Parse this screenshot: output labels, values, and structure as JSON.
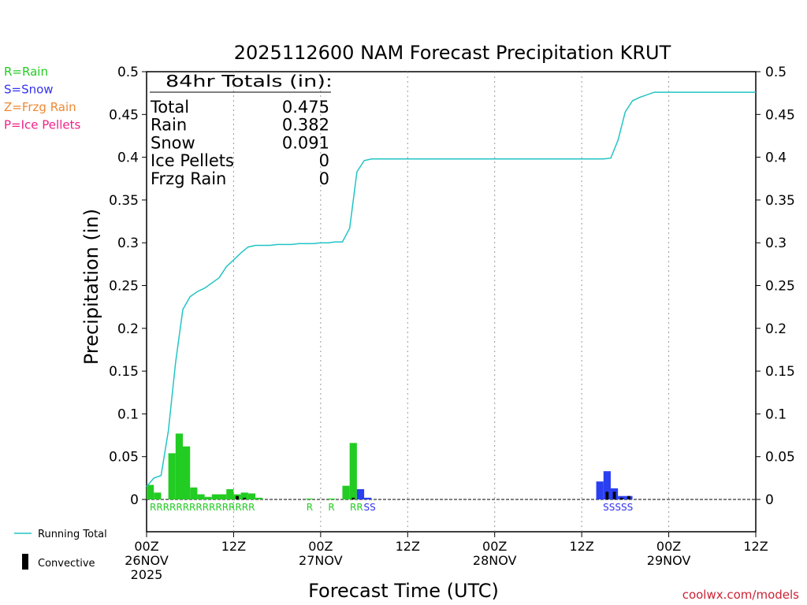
{
  "chart_data": {
    "type": "bar",
    "title": "2025112600 NAM Forecast Precipitation KRUT",
    "ylabel": "Precipitation (in)",
    "xlabel": "Forecast Time (UTC)",
    "ylim": [
      0,
      0.5
    ],
    "xlim_hours": [
      0,
      84
    ],
    "y_ticks": [
      "0",
      "0.05",
      "0.1",
      "0.15",
      "0.2",
      "0.25",
      "0.3",
      "0.35",
      "0.4",
      "0.45",
      "0.5"
    ],
    "x_ticks": [
      {
        "hour": 0,
        "line1": "00Z",
        "line2": "26NOV",
        "line3": "2025"
      },
      {
        "hour": 12,
        "line1": "12Z",
        "line2": "",
        "line3": ""
      },
      {
        "hour": 24,
        "line1": "00Z",
        "line2": "27NOV",
        "line3": ""
      },
      {
        "hour": 36,
        "line1": "12Z",
        "line2": "",
        "line3": ""
      },
      {
        "hour": 48,
        "line1": "00Z",
        "line2": "28NOV",
        "line3": ""
      },
      {
        "hour": 60,
        "line1": "12Z",
        "line2": "",
        "line3": ""
      },
      {
        "hour": 72,
        "line1": "00Z",
        "line2": "29NOV",
        "line3": ""
      },
      {
        "hour": 84,
        "line1": "12Z",
        "line2": "",
        "line3": ""
      }
    ],
    "grid": "dotted vertical lines at 12-hour intervals",
    "legend_ptype": [
      {
        "label": "R=Rain",
        "color": "#22cc22"
      },
      {
        "label": "S=Snow",
        "color": "#3333ee"
      },
      {
        "label": "Z=Frzg Rain",
        "color": "#ee8833"
      },
      {
        "label": "P=Ice Pellets",
        "color": "#ee2288"
      }
    ],
    "legend_lines": [
      {
        "label": "Running Total",
        "color": "#22c4c4"
      },
      {
        "label": "Convective",
        "color": "#000000"
      }
    ],
    "totals_box": {
      "header": "84hr Totals (in):",
      "rows": [
        {
          "label": "Total",
          "value": "0.475"
        },
        {
          "label": "Rain",
          "value": "0.382"
        },
        {
          "label": "Snow",
          "value": "0.091"
        },
        {
          "label": "Ice Pellets",
          "value": "0"
        },
        {
          "label": "Frzg Rain",
          "value": "0"
        }
      ]
    },
    "bars": [
      {
        "hour": 1,
        "value": 0.017,
        "ptype": "R",
        "conv": 0
      },
      {
        "hour": 2,
        "value": 0.008,
        "ptype": "R",
        "conv": 0
      },
      {
        "hour": 4,
        "value": 0.054,
        "ptype": "R",
        "conv": 0
      },
      {
        "hour": 5,
        "value": 0.077,
        "ptype": "R",
        "conv": 0
      },
      {
        "hour": 6,
        "value": 0.062,
        "ptype": "R",
        "conv": 0
      },
      {
        "hour": 7,
        "value": 0.014,
        "ptype": "R",
        "conv": 0
      },
      {
        "hour": 8,
        "value": 0.006,
        "ptype": "R",
        "conv": 0
      },
      {
        "hour": 9,
        "value": 0.003,
        "ptype": "R",
        "conv": 0
      },
      {
        "hour": 10,
        "value": 0.006,
        "ptype": "R",
        "conv": 0
      },
      {
        "hour": 11,
        "value": 0.006,
        "ptype": "R",
        "conv": 0
      },
      {
        "hour": 12,
        "value": 0.012,
        "ptype": "R",
        "conv": 0
      },
      {
        "hour": 13,
        "value": 0.006,
        "ptype": "R",
        "conv": 0.004
      },
      {
        "hour": 14,
        "value": 0.008,
        "ptype": "R",
        "conv": 0.002
      },
      {
        "hour": 15,
        "value": 0.007,
        "ptype": "R",
        "conv": 0
      },
      {
        "hour": 16,
        "value": 0.002,
        "ptype": "R",
        "conv": 0
      },
      {
        "hour": 23,
        "value": 0.001,
        "ptype": "R",
        "conv": 0
      },
      {
        "hour": 26,
        "value": 0.001,
        "ptype": "R",
        "conv": 0
      },
      {
        "hour": 28,
        "value": 0.016,
        "ptype": "R",
        "conv": 0
      },
      {
        "hour": 29,
        "value": 0.066,
        "ptype": "R",
        "conv": 0.002
      },
      {
        "hour": 30,
        "value": 0.012,
        "ptype": "S",
        "conv": 0
      },
      {
        "hour": 31,
        "value": 0.002,
        "ptype": "S",
        "conv": 0
      },
      {
        "hour": 63,
        "value": 0.021,
        "ptype": "S",
        "conv": 0
      },
      {
        "hour": 64,
        "value": 0.033,
        "ptype": "S",
        "conv": 0.009
      },
      {
        "hour": 65,
        "value": 0.013,
        "ptype": "S",
        "conv": 0.009
      },
      {
        "hour": 66,
        "value": 0.004,
        "ptype": "S",
        "conv": 0.002
      },
      {
        "hour": 67,
        "value": 0.004,
        "ptype": "S",
        "conv": 0.004
      }
    ],
    "ptype_labels": [
      {
        "hour": 0,
        "text": "RRRRRRRRRRRRRRRR",
        "color": "#22cc22"
      },
      {
        "hour": 21.6,
        "text": "R",
        "color": "#22cc22"
      },
      {
        "hour": 24.6,
        "text": "R",
        "color": "#22cc22"
      },
      {
        "hour": 27.6,
        "text": "RR",
        "color": "#22cc22"
      },
      {
        "hour": 29.5,
        "text": "SS",
        "color": "#3333ee"
      },
      {
        "hour": 62.5,
        "text": "SSSSS",
        "color": "#3333ee"
      }
    ],
    "running_total": {
      "hours": [
        0,
        1,
        2,
        3,
        4,
        5,
        6,
        7,
        8,
        9,
        10,
        11,
        12,
        13,
        14,
        15,
        16,
        17,
        18,
        19,
        20,
        21,
        22,
        23,
        24,
        25,
        26,
        27,
        28,
        29,
        30,
        31,
        32,
        33,
        34,
        35,
        36,
        40,
        44,
        48,
        52,
        56,
        60,
        61,
        62,
        63,
        64,
        65,
        66,
        67,
        68,
        70,
        72,
        76,
        80,
        84
      ],
      "values": [
        0.015,
        0.025,
        0.028,
        0.08,
        0.16,
        0.222,
        0.237,
        0.243,
        0.247,
        0.253,
        0.259,
        0.272,
        0.28,
        0.288,
        0.295,
        0.297,
        0.297,
        0.297,
        0.298,
        0.298,
        0.298,
        0.299,
        0.299,
        0.299,
        0.3,
        0.3,
        0.301,
        0.301,
        0.317,
        0.383,
        0.396,
        0.398,
        0.398,
        0.398,
        0.398,
        0.398,
        0.398,
        0.398,
        0.398,
        0.398,
        0.398,
        0.398,
        0.398,
        0.398,
        0.398,
        0.398,
        0.399,
        0.42,
        0.453,
        0.466,
        0.47,
        0.476,
        0.476,
        0.476,
        0.476,
        0.476
      ]
    },
    "colors": {
      "rain": "#22cc22",
      "snow": "#2a3ff0",
      "running_total": "#22c4c4",
      "convective": "#000000",
      "grid": "#999999"
    }
  },
  "footer": {
    "credit": "coolwx.com/models"
  }
}
